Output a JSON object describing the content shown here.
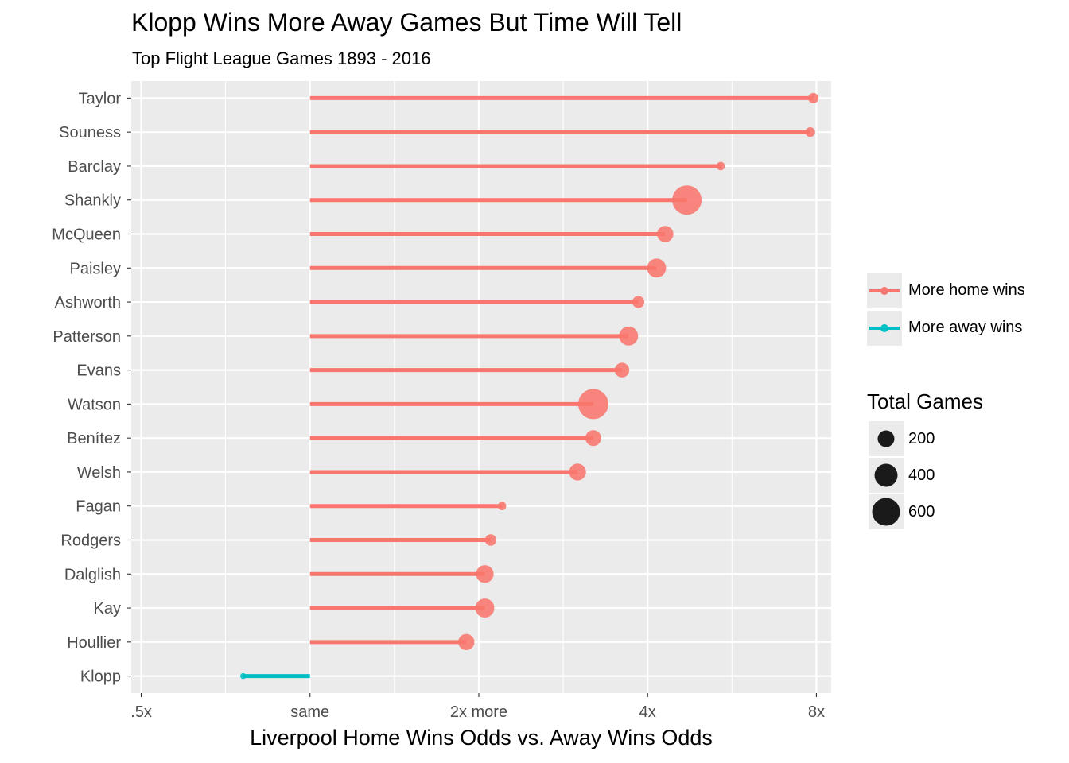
{
  "chart_data": {
    "type": "lollipop",
    "title": "Klopp Wins More Away Games But Time Will Tell",
    "subtitle": "Top Flight League Games 1893 - 2016",
    "xlabel": "Liverpool Home Wins Odds vs. Away Wins Odds",
    "ylabel": "",
    "x_scale": "log2",
    "x_ticks": [
      {
        "value": 0.5,
        "label": ".5x"
      },
      {
        "value": 1,
        "label": "same"
      },
      {
        "value": 2,
        "label": "2x more"
      },
      {
        "value": 4,
        "label": "4x"
      },
      {
        "value": 8,
        "label": "8x"
      }
    ],
    "xlim": [
      0.48,
      8.5
    ],
    "baseline": 1,
    "categories": [
      "Taylor",
      "Souness",
      "Barclay",
      "Shankly",
      "McQueen",
      "Paisley",
      "Ashworth",
      "Patterson",
      "Evans",
      "Watson",
      "Benítez",
      "Welsh",
      "Fagan",
      "Rodgers",
      "Dalglish",
      "Kay",
      "Houllier",
      "Klopp"
    ],
    "values": [
      7.9,
      7.8,
      5.4,
      4.7,
      4.3,
      4.15,
      3.85,
      3.7,
      3.6,
      3.2,
      3.2,
      3.0,
      2.2,
      2.1,
      2.05,
      2.05,
      1.9,
      0.76
    ],
    "total_games": [
      90,
      80,
      60,
      720,
      220,
      300,
      120,
      300,
      180,
      760,
      210,
      240,
      60,
      110,
      260,
      300,
      220,
      30
    ],
    "groups": [
      "More home wins",
      "More home wins",
      "More home wins",
      "More home wins",
      "More home wins",
      "More home wins",
      "More home wins",
      "More home wins",
      "More home wins",
      "More home wins",
      "More home wins",
      "More home wins",
      "More home wins",
      "More home wins",
      "More home wins",
      "More home wins",
      "More home wins",
      "More away wins"
    ],
    "colors": {
      "More home wins": "#f8766d",
      "More away wins": "#00bfc4"
    },
    "grid": true,
    "legend_position": "right",
    "legend": {
      "color": [
        "More home wins",
        "More away wins"
      ],
      "size_title": "Total Games",
      "size_breaks": [
        200,
        400,
        600
      ],
      "size_labels": [
        "200",
        "400",
        "600"
      ]
    }
  }
}
